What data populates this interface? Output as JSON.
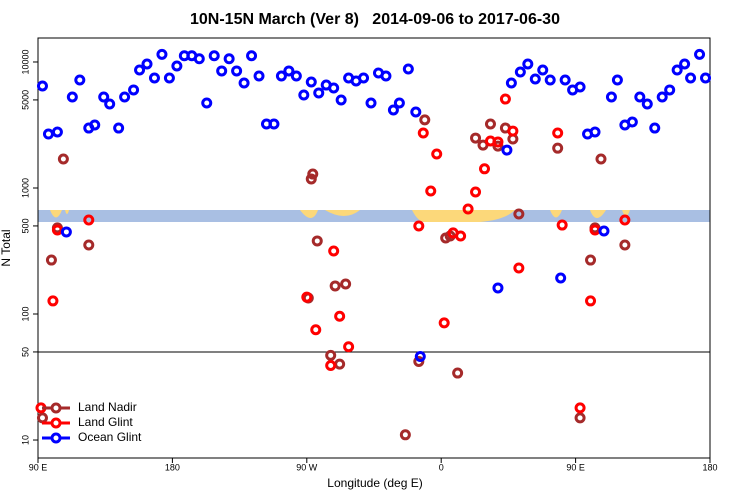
{
  "chart_data": {
    "type": "scatter",
    "title": "10N-15N March (Ver 8)   2014-09-06 to 2017-06-30",
    "xlabel": "Longitude (deg E)",
    "ylabel": "N Total",
    "log_y": true,
    "xlim": [
      90,
      540
    ],
    "ylim": [
      7.2,
      15500
    ],
    "xticks": [
      {
        "value": 90,
        "label": "90 E"
      },
      180,
      {
        "value": 270,
        "label": "90 W"
      },
      {
        "value": 360,
        "label": "0"
      },
      {
        "value": 450,
        "label": "90 E"
      },
      {
        "value": 540,
        "label": "180"
      }
    ],
    "yticks": [
      10,
      50,
      100,
      500,
      1000,
      5000,
      10000
    ],
    "hline": 50,
    "legend": "lower left",
    "series": [
      {
        "name": "Land Nadir",
        "color": "#a52a2a",
        "x": [
          93,
          99,
          103,
          107,
          124,
          271,
          273,
          274,
          277,
          286,
          289,
          292,
          296,
          336,
          345,
          349,
          363,
          366,
          371,
          383,
          388,
          393,
          398,
          403,
          408,
          412,
          438,
          453,
          460,
          463,
          467,
          483
        ],
        "values": [
          15,
          268,
          482,
          1700,
          353,
          134,
          1180,
          1290,
          380,
          47,
          167,
          40,
          173,
          11,
          42,
          3470,
          401,
          416,
          34,
          2490,
          2190,
          3220,
          2150,
          2990,
          2450,
          622,
          2070,
          15,
          268,
          482,
          1700,
          353
        ]
      },
      {
        "name": "Land Glint",
        "color": "#ff0000",
        "x": [
          92,
          100,
          103,
          124,
          270,
          276,
          288,
          286,
          292,
          298,
          345,
          348,
          357,
          353,
          362,
          368,
          373,
          378,
          383,
          389,
          393,
          398,
          403,
          408,
          412,
          438,
          441,
          453,
          460,
          463,
          483
        ],
        "values": [
          18,
          127,
          464,
          557,
          136,
          75,
          316,
          39,
          96,
          55,
          499,
          2730,
          1860,
          946,
          85,
          440,
          416,
          681,
          929,
          1420,
          2360,
          2320,
          5080,
          2830,
          232,
          2730,
          508,
          18,
          127,
          464,
          557
        ]
      },
      {
        "name": "Ocean Glint",
        "color": "#0000ff",
        "x": [
          93,
          97,
          103,
          109,
          113,
          118,
          124,
          128,
          134,
          138,
          144,
          148,
          154,
          158,
          163,
          168,
          173,
          178,
          183,
          188,
          193,
          198,
          203,
          208,
          213,
          218,
          223,
          228,
          233,
          238,
          243,
          248,
          253,
          258,
          263,
          268,
          273,
          278,
          283,
          288,
          293,
          298,
          303,
          308,
          313,
          318,
          323,
          328,
          332,
          338,
          343,
          346,
          398,
          404,
          407,
          413,
          418,
          423,
          428,
          433,
          440,
          443,
          448,
          453,
          458,
          463,
          469,
          474,
          478,
          483,
          488,
          493,
          498,
          503,
          508,
          513,
          518,
          523,
          527,
          533,
          537
        ],
        "values": [
          6450,
          2680,
          2780,
          448,
          5270,
          7200,
          2990,
          3160,
          5270,
          4640,
          2990,
          5270,
          6000,
          8640,
          9640,
          7460,
          11500,
          7460,
          9300,
          11200,
          11200,
          10600,
          4730,
          11200,
          8490,
          10600,
          8490,
          6810,
          11200,
          7740,
          3220,
          3220,
          7740,
          8490,
          7740,
          5470,
          6940,
          5680,
          6560,
          6220,
          4990,
          7460,
          7060,
          7460,
          4730,
          8180,
          7740,
          4160,
          4730,
          8800,
          4010,
          46,
          161,
          2000,
          6810,
          8330,
          9640,
          7330,
          8640,
          7200,
          193,
          7200,
          6000,
          6330,
          2680,
          2780,
          456,
          5270,
          7200,
          3160,
          3340,
          5270,
          4640,
          2990,
          5270,
          6000,
          8640,
          9640,
          7460,
          11500,
          7460
        ]
      }
    ]
  }
}
